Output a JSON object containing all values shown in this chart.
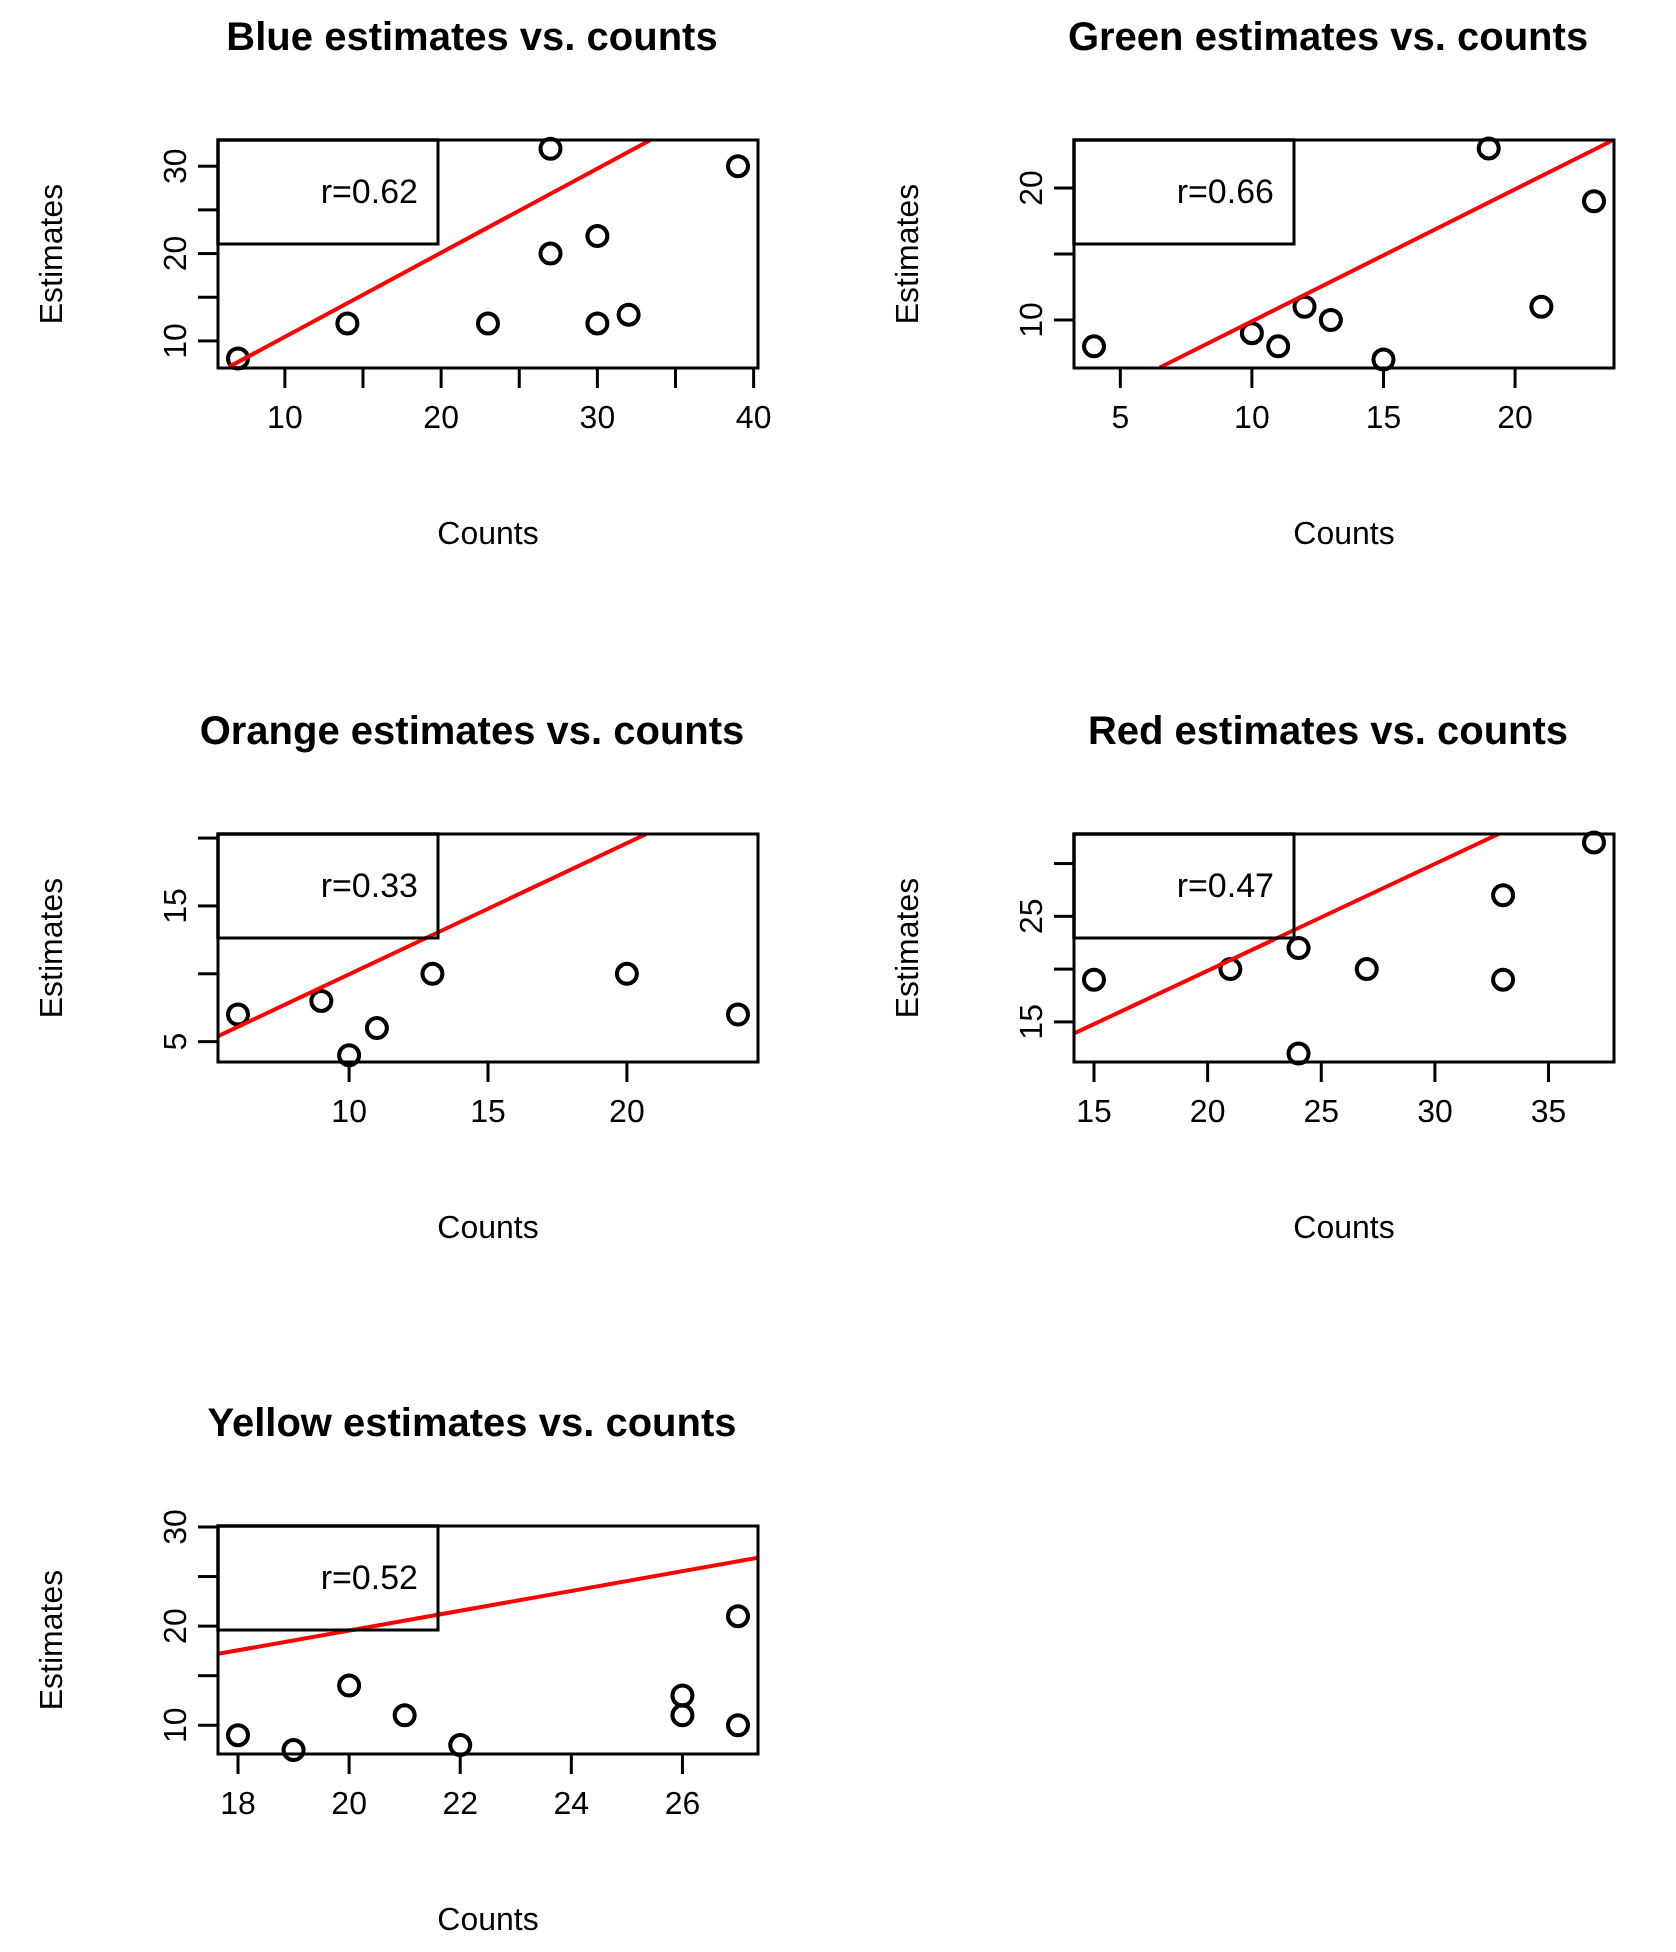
{
  "chart_data": [
    {
      "type": "scatter",
      "title": "Blue estimates vs. counts",
      "xlabel": "Counts",
      "ylabel": "Estimates",
      "annotations": [
        "r=0.62"
      ],
      "xlim": [
        5.72,
        40.28
      ],
      "ylim": [
        6.9,
        33.0
      ],
      "xticks": [
        10,
        {
          "value": 15,
          "label": null
        },
        20,
        {
          "value": 25,
          "label": null
        },
        30,
        {
          "value": 35,
          "label": null
        },
        40
      ],
      "yticks": [
        10,
        {
          "value": 15,
          "label": null
        },
        20,
        {
          "value": 25,
          "label": null
        },
        30
      ],
      "series": [
        {
          "type": "scatter",
          "marker": "circle",
          "color": "#000000",
          "x": [
            7,
            14,
            23,
            27,
            27,
            30,
            30,
            32,
            39
          ],
          "values": [
            8,
            12,
            12,
            32,
            20,
            22,
            12,
            13,
            30
          ]
        },
        {
          "type": "line",
          "color": "#ff0000",
          "x": [
            6.4,
            33.4
          ],
          "values": [
            7.0,
            33.0
          ]
        }
      ]
    },
    {
      "type": "scatter",
      "title": "Green estimates vs. counts",
      "xlabel": "Counts",
      "ylabel": "Estimates",
      "annotations": [
        "r=0.66"
      ],
      "xlim": [
        3.24,
        23.76
      ],
      "ylim": [
        6.36,
        23.64
      ],
      "xticks": [
        5,
        10,
        15,
        20
      ],
      "yticks": [
        10,
        {
          "value": 15,
          "label": null
        },
        20
      ],
      "series": [
        {
          "type": "scatter",
          "marker": "circle",
          "color": "#000000",
          "x": [
            4,
            10,
            11,
            12,
            13,
            15,
            19,
            21,
            23
          ],
          "values": [
            8,
            9,
            8,
            11,
            10,
            7,
            23,
            11,
            19
          ]
        },
        {
          "type": "line",
          "color": "#ff0000",
          "x": [
            6.5,
            23.7
          ],
          "values": [
            6.4,
            23.6
          ]
        }
      ]
    },
    {
      "type": "scatter",
      "title": "Orange estimates vs. counts",
      "xlabel": "Counts",
      "ylabel": "Estimates",
      "annotations": [
        "r=0.33"
      ],
      "xlim": [
        5.28,
        24.72
      ],
      "ylim": [
        3.5,
        20.3
      ],
      "xticks": [
        10,
        15,
        20
      ],
      "yticks": [
        5,
        {
          "value": 10,
          "label": null
        },
        15,
        {
          "value": 20,
          "label": null
        }
      ],
      "series": [
        {
          "type": "scatter",
          "marker": "circle",
          "color": "#000000",
          "x": [
            6,
            9,
            10,
            11,
            13,
            20,
            24
          ],
          "values": [
            7,
            8,
            4,
            6,
            10,
            10,
            7
          ]
        },
        {
          "type": "line",
          "color": "#ff0000",
          "x": [
            5.28,
            20.7
          ],
          "values": [
            5.4,
            20.3
          ]
        }
      ]
    },
    {
      "type": "scatter",
      "title": "Red estimates vs. counts",
      "xlabel": "Counts",
      "ylabel": "Estimates",
      "annotations": [
        "r=0.47"
      ],
      "xlim": [
        14.12,
        37.88
      ],
      "ylim": [
        11.2,
        32.8
      ],
      "xticks": [
        15,
        20,
        25,
        30,
        35
      ],
      "yticks": [
        15,
        {
          "value": 20,
          "label": null
        },
        25,
        {
          "value": 30,
          "label": null
        }
      ],
      "series": [
        {
          "type": "scatter",
          "marker": "circle",
          "color": "#000000",
          "x": [
            15,
            21,
            24,
            24,
            27,
            33,
            33,
            37
          ],
          "values": [
            19,
            20,
            22,
            12,
            20,
            27,
            19,
            32
          ]
        },
        {
          "type": "line",
          "color": "#ff0000",
          "x": [
            14.12,
            32.8
          ],
          "values": [
            13.9,
            32.8
          ]
        }
      ]
    },
    {
      "type": "scatter",
      "title": "Yellow estimates vs. counts",
      "xlabel": "Counts",
      "ylabel": "Estimates",
      "annotations": [
        "r=0.52"
      ],
      "xlim": [
        17.64,
        27.36
      ],
      "ylim": [
        7.1,
        30.1
      ],
      "xticks": [
        18,
        20,
        22,
        24,
        26
      ],
      "yticks": [
        10,
        {
          "value": 15,
          "label": null
        },
        20,
        {
          "value": 25,
          "label": null
        },
        30
      ],
      "series": [
        {
          "type": "scatter",
          "marker": "circle",
          "color": "#000000",
          "x": [
            18,
            19,
            20,
            21,
            22,
            26,
            26,
            27,
            27
          ],
          "values": [
            9,
            7.5,
            14,
            11,
            8,
            13,
            11,
            21,
            10
          ]
        },
        {
          "type": "line",
          "color": "#ff0000",
          "x": [
            17.64,
            27.36
          ],
          "values": [
            17.2,
            26.9
          ]
        }
      ]
    }
  ]
}
